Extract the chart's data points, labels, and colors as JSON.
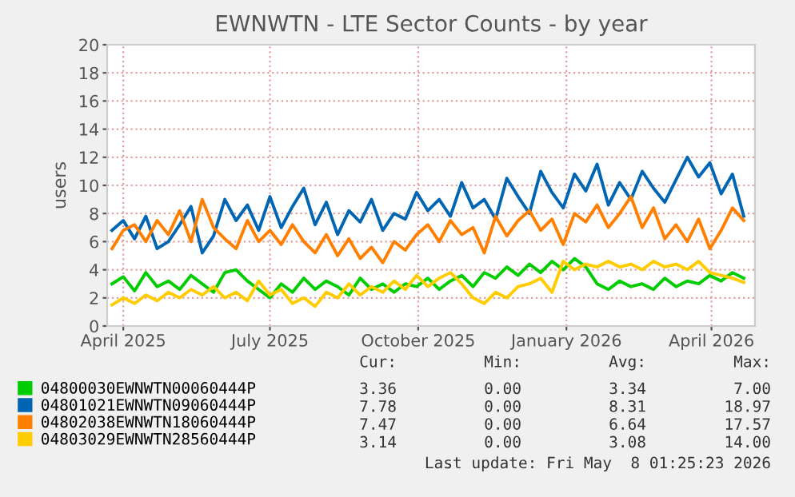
{
  "chart_data": {
    "type": "line",
    "title": "EWNWTN - LTE Sector Counts - by year",
    "ylabel": "users",
    "x": [
      "2025-03-25",
      "2025-04-01",
      "2025-04-08",
      "2025-04-15",
      "2025-04-22",
      "2025-04-29",
      "2025-05-06",
      "2025-05-13",
      "2025-05-20",
      "2025-05-27",
      "2025-06-03",
      "2025-06-10",
      "2025-06-17",
      "2025-06-24",
      "2025-07-01",
      "2025-07-08",
      "2025-07-15",
      "2025-07-22",
      "2025-07-29",
      "2025-08-05",
      "2025-08-12",
      "2025-08-19",
      "2025-08-26",
      "2025-09-02",
      "2025-09-09",
      "2025-09-16",
      "2025-09-23",
      "2025-09-30",
      "2025-10-07",
      "2025-10-14",
      "2025-10-21",
      "2025-10-28",
      "2025-11-04",
      "2025-11-11",
      "2025-11-18",
      "2025-11-25",
      "2025-12-02",
      "2025-12-09",
      "2025-12-16",
      "2025-12-23",
      "2025-12-30",
      "2026-01-06",
      "2026-01-13",
      "2026-01-20",
      "2026-01-27",
      "2026-02-03",
      "2026-02-10",
      "2026-02-17",
      "2026-02-24",
      "2026-03-03",
      "2026-03-10",
      "2026-03-17",
      "2026-03-24",
      "2026-03-31",
      "2026-04-07",
      "2026-04-14",
      "2026-04-21"
    ],
    "series": [
      {
        "name": "04800030EWNWTN00060444P",
        "color": "#00cc00",
        "values": [
          3.0,
          3.5,
          2.5,
          3.8,
          2.8,
          3.2,
          2.6,
          3.6,
          3.0,
          2.4,
          3.8,
          4.0,
          3.2,
          2.6,
          2.0,
          3.0,
          2.4,
          3.4,
          2.6,
          3.2,
          2.8,
          2.2,
          3.4,
          2.6,
          3.0,
          2.4,
          3.0,
          2.8,
          3.4,
          2.6,
          3.2,
          3.6,
          2.8,
          3.8,
          3.4,
          4.2,
          3.6,
          4.4,
          3.8,
          4.6,
          4.0,
          4.8,
          4.2,
          3.0,
          2.6,
          3.2,
          2.8,
          3.0,
          2.6,
          3.4,
          2.8,
          3.2,
          3.0,
          3.6,
          3.2,
          3.8,
          3.4
        ]
      },
      {
        "name": "04801021EWNWTN09060444P",
        "color": "#0066b3",
        "values": [
          6.8,
          7.5,
          6.2,
          7.8,
          5.5,
          6.0,
          7.2,
          8.5,
          5.2,
          6.4,
          9.0,
          7.5,
          8.6,
          6.8,
          9.2,
          7.0,
          8.5,
          9.8,
          7.2,
          8.8,
          6.5,
          8.2,
          7.4,
          9.0,
          6.8,
          8.0,
          7.6,
          9.5,
          8.2,
          9.0,
          7.8,
          10.2,
          8.4,
          9.0,
          7.6,
          10.5,
          9.2,
          8.0,
          11.0,
          9.5,
          8.4,
          10.8,
          9.6,
          11.5,
          8.6,
          10.2,
          9.0,
          11.0,
          9.8,
          8.8,
          10.4,
          12.0,
          10.6,
          11.6,
          9.4,
          10.8,
          7.8
        ]
      },
      {
        "name": "04802038EWNWTN18060444P",
        "color": "#ff8000",
        "values": [
          5.5,
          6.8,
          7.2,
          6.0,
          7.5,
          6.5,
          8.2,
          6.0,
          9.0,
          7.0,
          6.2,
          5.5,
          7.5,
          6.0,
          6.8,
          5.8,
          7.2,
          6.0,
          5.2,
          6.5,
          5.0,
          6.2,
          4.8,
          5.6,
          4.5,
          6.0,
          5.4,
          6.5,
          7.2,
          6.0,
          7.5,
          6.5,
          7.0,
          5.2,
          7.8,
          6.4,
          7.5,
          8.2,
          6.8,
          7.6,
          5.8,
          8.0,
          7.4,
          8.6,
          7.0,
          8.0,
          9.2,
          7.0,
          8.4,
          6.2,
          7.2,
          6.0,
          7.6,
          5.5,
          6.8,
          8.4,
          7.5
        ]
      },
      {
        "name": "04803029EWNWTN28560444P",
        "color": "#ffcc00",
        "values": [
          1.5,
          2.0,
          1.6,
          2.2,
          1.8,
          2.4,
          2.0,
          2.6,
          2.2,
          2.8,
          2.0,
          2.4,
          1.8,
          3.2,
          2.2,
          2.6,
          1.6,
          2.0,
          1.4,
          2.4,
          2.0,
          3.0,
          2.2,
          2.8,
          2.4,
          3.2,
          2.6,
          3.6,
          2.8,
          3.4,
          3.8,
          3.0,
          2.0,
          1.6,
          2.4,
          2.0,
          2.8,
          3.0,
          3.4,
          2.4,
          4.6,
          4.0,
          4.4,
          4.2,
          4.6,
          4.2,
          4.4,
          4.0,
          4.6,
          4.2,
          4.4,
          4.0,
          4.6,
          3.8,
          3.6,
          3.4,
          3.1
        ]
      }
    ],
    "xlim": [
      "2025-03-22",
      "2026-04-28"
    ],
    "xticks": [
      {
        "value": "2025-04-01",
        "label": "April 2025"
      },
      {
        "value": "2025-07-01",
        "label": "July 2025"
      },
      {
        "value": "2025-10-01",
        "label": "October 2025"
      },
      {
        "value": "2026-01-01",
        "label": "January 2026"
      },
      {
        "value": "2026-04-01",
        "label": "April 2026"
      }
    ],
    "ylim": [
      0,
      20
    ],
    "yticks": [
      0,
      2,
      4,
      6,
      8,
      10,
      12,
      14,
      16,
      18,
      20
    ],
    "grid": true,
    "legend": "bottom left",
    "marker": "none",
    "line_style": "solid",
    "annotations": [
      "Cur:",
      "Min:",
      "Avg:",
      "Max:",
      "3.36",
      "0.00",
      "3.34",
      "7.00",
      "7.78",
      "0.00",
      "8.31",
      "18.97",
      "7.47",
      "0.00",
      "6.64",
      "17.57",
      "3.14",
      "0.00",
      "3.08",
      "14.00",
      "Last update: Fri May  8 01:25:23 2026"
    ]
  }
}
